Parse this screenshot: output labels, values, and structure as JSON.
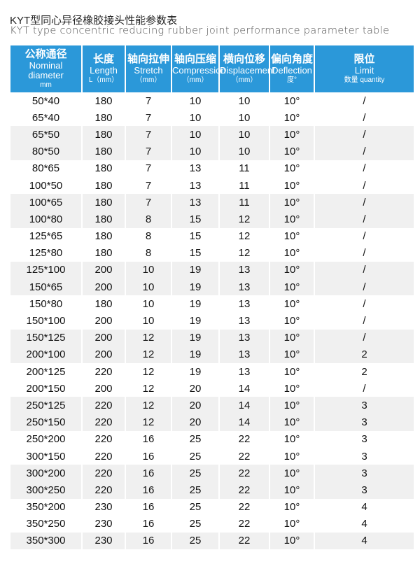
{
  "title_cn": "KYT型同心异径橡胶接头性能参数表",
  "title_en": "KYT type concentric reducing rubber joint performance parameter table",
  "header_color": "#2b98d9",
  "columns": [
    {
      "cn": "公称通径",
      "en": "Nominal diameter",
      "unit": "mm"
    },
    {
      "cn": "长度",
      "en": "Length",
      "unit": "L（mm）"
    },
    {
      "cn": "轴向拉伸",
      "en": "Stretch",
      "unit": "（mm）"
    },
    {
      "cn": "轴向压缩",
      "en": "Compression",
      "unit": "（mm）"
    },
    {
      "cn": "横向位移",
      "en": "Displacement",
      "unit": "（mm）"
    },
    {
      "cn": "偏向角度",
      "en": "Deflection",
      "unit": "度°"
    },
    {
      "cn": "限位",
      "en": "Limit",
      "unit": "数量 quantity"
    }
  ],
  "rows": [
    [
      "50*40",
      "180",
      "7",
      "10",
      "10",
      "10°",
      "/"
    ],
    [
      "65*40",
      "180",
      "7",
      "10",
      "10",
      "10°",
      "/"
    ],
    [
      "65*50",
      "180",
      "7",
      "10",
      "10",
      "10°",
      "/"
    ],
    [
      "80*50",
      "180",
      "7",
      "10",
      "10",
      "10°",
      "/"
    ],
    [
      "80*65",
      "180",
      "7",
      "13",
      "11",
      "10°",
      "/"
    ],
    [
      "100*50",
      "180",
      "7",
      "13",
      "11",
      "10°",
      "/"
    ],
    [
      "100*65",
      "180",
      "7",
      "13",
      "11",
      "10°",
      "/"
    ],
    [
      "100*80",
      "180",
      "8",
      "15",
      "12",
      "10°",
      "/"
    ],
    [
      "125*65",
      "180",
      "8",
      "15",
      "12",
      "10°",
      "/"
    ],
    [
      "125*80",
      "180",
      "8",
      "15",
      "12",
      "10°",
      "/"
    ],
    [
      "125*100",
      "200",
      "10",
      "19",
      "13",
      "10°",
      "/"
    ],
    [
      "150*65",
      "200",
      "10",
      "19",
      "13",
      "10°",
      "/"
    ],
    [
      "150*80",
      "180",
      "10",
      "19",
      "13",
      "10°",
      "/"
    ],
    [
      "150*100",
      "200",
      "10",
      "19",
      "13",
      "10°",
      "/"
    ],
    [
      "150*125",
      "200",
      "12",
      "19",
      "13",
      "10°",
      "/"
    ],
    [
      "200*100",
      "200",
      "12",
      "19",
      "13",
      "10°",
      "2"
    ],
    [
      "200*125",
      "220",
      "12",
      "19",
      "13",
      "10°",
      "2"
    ],
    [
      "200*150",
      "200",
      "12",
      "20",
      "14",
      "10°",
      "/"
    ],
    [
      "250*125",
      "220",
      "12",
      "20",
      "14",
      "10°",
      "3"
    ],
    [
      "250*150",
      "220",
      "12",
      "20",
      "14",
      "10°",
      "3"
    ],
    [
      "250*200",
      "220",
      "16",
      "25",
      "22",
      "10°",
      "3"
    ],
    [
      "300*150",
      "220",
      "16",
      "25",
      "22",
      "10°",
      "3"
    ],
    [
      "300*200",
      "220",
      "16",
      "25",
      "22",
      "10°",
      "3"
    ],
    [
      "300*250",
      "220",
      "16",
      "25",
      "22",
      "10°",
      "3"
    ],
    [
      "350*200",
      "230",
      "16",
      "25",
      "22",
      "10°",
      "4"
    ],
    [
      "350*250",
      "230",
      "16",
      "25",
      "22",
      "10°",
      "4"
    ],
    [
      "350*300",
      "230",
      "16",
      "25",
      "22",
      "10°",
      "4"
    ]
  ]
}
